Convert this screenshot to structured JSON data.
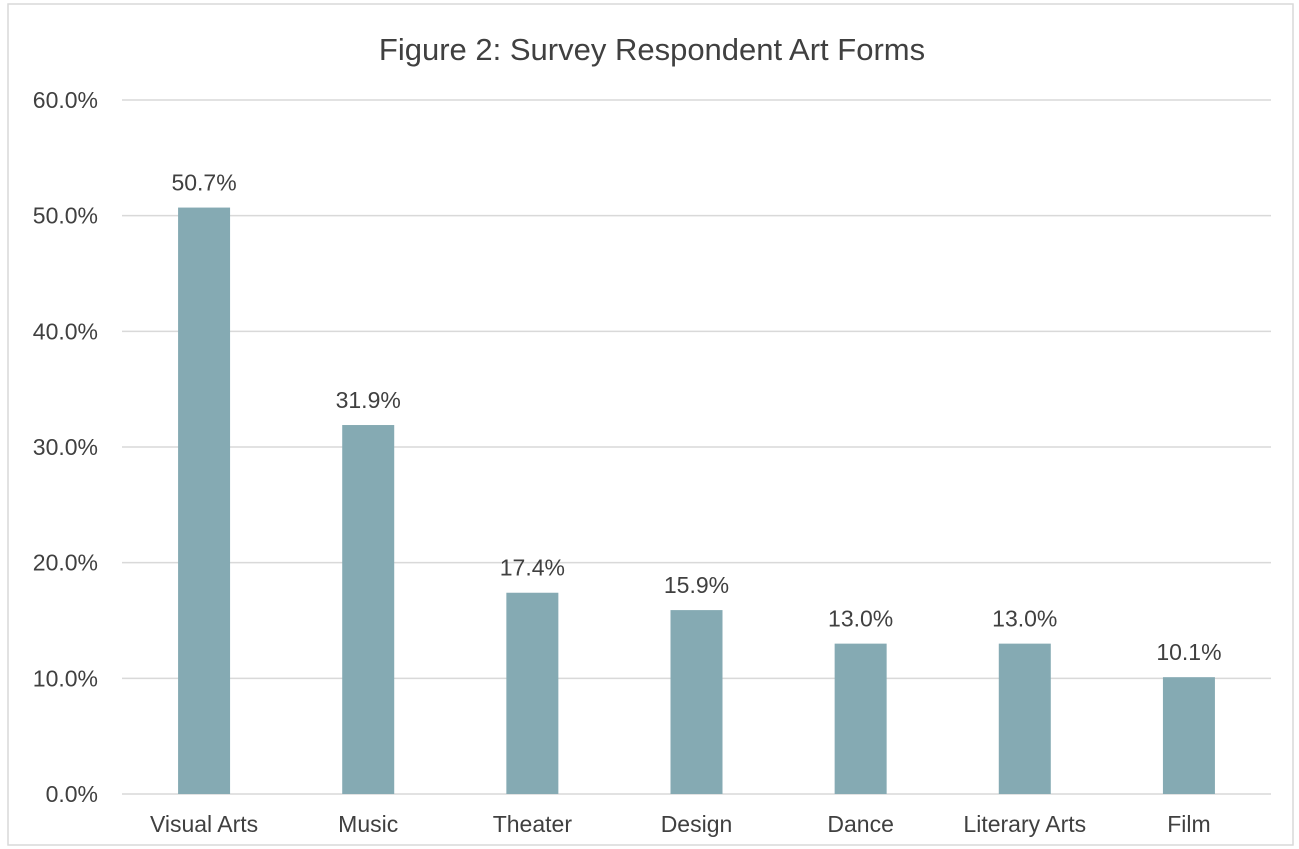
{
  "chart_data": {
    "type": "bar",
    "title": "Figure 2: Survey Respondent Art Forms",
    "categories": [
      "Visual Arts",
      "Music",
      "Theater",
      "Design",
      "Dance",
      "Literary Arts",
      "Film"
    ],
    "values": [
      50.7,
      31.9,
      17.4,
      15.9,
      13.0,
      13.0,
      10.1
    ],
    "data_labels": [
      "50.7%",
      "31.9%",
      "17.4%",
      "15.9%",
      "13.0%",
      "13.0%",
      "10.1%"
    ],
    "y_ticks": [
      "0.0%",
      "10.0%",
      "20.0%",
      "30.0%",
      "40.0%",
      "50.0%",
      "60.0%"
    ],
    "ylim": [
      0,
      60
    ],
    "grid": true,
    "legend": "none",
    "bar_color": "#85aab3",
    "gridline_color": "#d9d9d9",
    "text_color": "#404040"
  }
}
